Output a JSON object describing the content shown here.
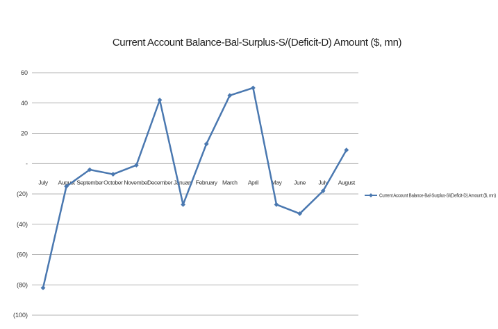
{
  "chart_data": {
    "type": "line",
    "title": "Current Account Balance-Bal-Surplus-S/(Deficit-D) Amount ($, mn)",
    "xlabel": "",
    "ylabel": "",
    "categories": [
      "July",
      "August",
      "September",
      "October",
      "November",
      "December",
      "January",
      "February",
      "March",
      "April",
      "May",
      "June",
      "July",
      "August"
    ],
    "series": [
      {
        "name": "Current Account Balance-Bal-Surplus-S/(Deficit-D) Amount ($, mn)",
        "values": [
          -82,
          -15,
          -4,
          -7,
          -1,
          42,
          -27,
          13,
          45,
          50,
          -27,
          -33,
          -18,
          9
        ],
        "color": "#4a78b0"
      }
    ],
    "ylim": [
      -100,
      60
    ],
    "yticks": [
      60,
      40,
      20,
      0,
      -20,
      -40,
      -60,
      -80,
      -100
    ],
    "ytick_labels": [
      "60",
      "40",
      "20",
      "-",
      "(20)",
      "(40)",
      "(60)",
      "(80)",
      "(100)"
    ],
    "grid": true,
    "legend": "right"
  }
}
